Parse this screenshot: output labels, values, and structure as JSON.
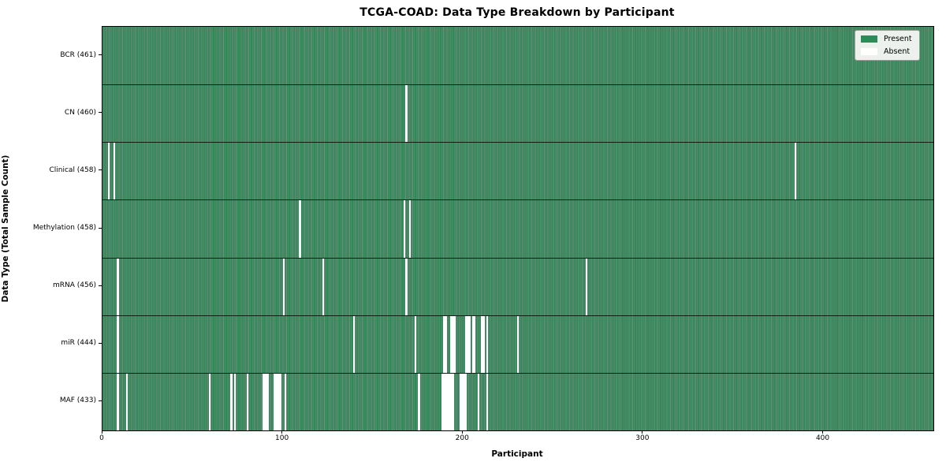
{
  "title": "TCGA-COAD: Data Type Breakdown by Participant",
  "colors": {
    "present": "#2e8b57",
    "absent": "#ffffff",
    "cell_edge": "rgba(10,40,25,0.55)",
    "legend_bg": "#edf1ee",
    "legend_border": "#9a9f9a",
    "axis": "#000000"
  },
  "legend": {
    "present_label": "Present",
    "absent_label": "Absent"
  },
  "chart_data": {
    "type": "heatmap",
    "title": "TCGA-COAD: Data Type Breakdown by Participant",
    "xlabel": "Participant",
    "ylabel": "Data Type (Total Sample Count)",
    "legend": [
      "Present",
      "Absent"
    ],
    "legend_position": "upper right",
    "x_range": [
      0,
      461
    ],
    "x_ticks": [
      0,
      100,
      200,
      300,
      400
    ],
    "total_participants": 461,
    "cell_states": [
      "present",
      "absent"
    ],
    "rows": [
      {
        "label": "BCR (461)",
        "data_type": "BCR",
        "present_count": 461,
        "absent_participants": []
      },
      {
        "label": "CN (460)",
        "data_type": "CN",
        "present_count": 460,
        "absent_participants": [
          168
        ]
      },
      {
        "label": "Clinical (458)",
        "data_type": "Clinical",
        "present_count": 458,
        "absent_participants": [
          3,
          6,
          384
        ]
      },
      {
        "label": "Methylation (458)",
        "data_type": "Methylation",
        "present_count": 458,
        "absent_participants": [
          109,
          167,
          170
        ]
      },
      {
        "label": "mRNA (456)",
        "data_type": "mRNA",
        "present_count": 456,
        "absent_participants": [
          8,
          100,
          122,
          168,
          268
        ]
      },
      {
        "label": "miR (444)",
        "data_type": "miR",
        "present_count": 444,
        "absent_participants": [
          8,
          139,
          173,
          189,
          190,
          193,
          194,
          195,
          201,
          202,
          203,
          205,
          206,
          210,
          211,
          213,
          230
        ]
      },
      {
        "label": "MAF (433)",
        "data_type": "MAF",
        "present_count": 433,
        "absent_participants": [
          8,
          13,
          59,
          71,
          73,
          80,
          89,
          90,
          91,
          95,
          96,
          97,
          98,
          101,
          175,
          188,
          189,
          190,
          191,
          192,
          193,
          194,
          198,
          199,
          200,
          201,
          208,
          213
        ]
      }
    ]
  }
}
